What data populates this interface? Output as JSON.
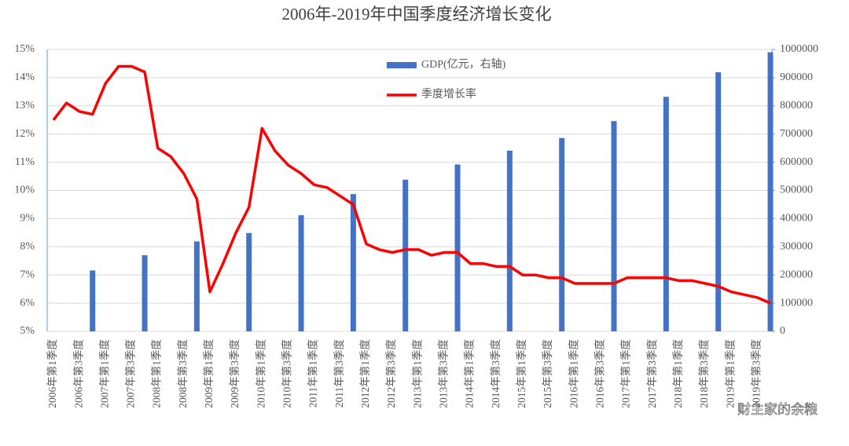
{
  "chart_data": {
    "type": "bar-line",
    "title": "2006年-2019年中国季度经济增长变化",
    "categories": [
      "2006年第1季度",
      null,
      "2006年第3季度",
      null,
      "2007年第1季度",
      null,
      "2007年第3季度",
      null,
      "2008年第1季度",
      null,
      "2008年第3季度",
      null,
      "2009年第1季度",
      null,
      "2009年第3季度",
      null,
      "2010年第1季度",
      null,
      "2010年第3季度",
      null,
      "2011年第1季度",
      null,
      "2011年第3季度",
      null,
      "2012年第1季度",
      null,
      "2012年第3季度",
      null,
      "2013年第1季度",
      null,
      "2013年第3季度",
      null,
      "2014年第1季度",
      null,
      "2014年第3季度",
      null,
      "2015年第1季度",
      null,
      "2015年第3季度",
      null,
      "2016年第1季度",
      null,
      "2016年第3季度",
      null,
      "2017年第1季度",
      null,
      "2017年第3季度",
      null,
      "2018年第1季度",
      null,
      "2018年第3季度",
      null,
      "2019年第1季度",
      null,
      "2019年第3季度",
      null
    ],
    "series": [
      {
        "name": "GDP(亿元，右轴)",
        "type": "bar",
        "axis": "y2",
        "color": "#4472c4",
        "values": [
          null,
          null,
          null,
          216000,
          null,
          null,
          null,
          270000,
          null,
          null,
          null,
          319000,
          null,
          null,
          null,
          349000,
          null,
          null,
          null,
          412000,
          null,
          null,
          null,
          487000,
          null,
          null,
          null,
          538000,
          null,
          null,
          null,
          592000,
          null,
          null,
          null,
          641000,
          null,
          null,
          null,
          686000,
          null,
          null,
          null,
          746000,
          null,
          null,
          null,
          832000,
          null,
          null,
          null,
          919000,
          null,
          null,
          null,
          990000
        ]
      },
      {
        "name": "季度增长率",
        "type": "line",
        "color": "#ff0000",
        "values": [
          12.5,
          13.1,
          12.8,
          12.7,
          13.8,
          14.4,
          14.4,
          14.2,
          11.5,
          11.2,
          10.6,
          9.7,
          6.4,
          7.4,
          8.5,
          9.4,
          12.2,
          11.4,
          10.9,
          10.6,
          10.2,
          10.1,
          9.8,
          9.5,
          8.1,
          7.9,
          7.8,
          7.9,
          7.9,
          7.7,
          7.8,
          7.8,
          7.4,
          7.4,
          7.3,
          7.3,
          7.0,
          7.0,
          6.9,
          6.9,
          6.7,
          6.7,
          6.7,
          6.7,
          6.9,
          6.9,
          6.9,
          6.9,
          6.8,
          6.8,
          6.7,
          6.6,
          6.4,
          6.3,
          6.2,
          6.0
        ]
      }
    ],
    "ylim": [
      5,
      15
    ],
    "yticks": [
      {
        "value": 5,
        "label": "5%"
      },
      {
        "value": 6,
        "label": "6%"
      },
      {
        "value": 7,
        "label": "7%"
      },
      {
        "value": 8,
        "label": "8%"
      },
      {
        "value": 9,
        "label": "9%"
      },
      {
        "value": 10,
        "label": "10%"
      },
      {
        "value": 11,
        "label": "11%"
      },
      {
        "value": 12,
        "label": "12%"
      },
      {
        "value": 13,
        "label": "13%"
      },
      {
        "value": 14,
        "label": "14%"
      },
      {
        "value": 15,
        "label": "15%"
      }
    ],
    "y2lim": [
      0,
      1000000
    ],
    "y2ticks": [
      0,
      100000,
      200000,
      300000,
      400000,
      500000,
      600000,
      700000,
      800000,
      900000,
      1000000
    ],
    "grid": true,
    "legend": "top",
    "watermark": "财主家的余粮"
  }
}
